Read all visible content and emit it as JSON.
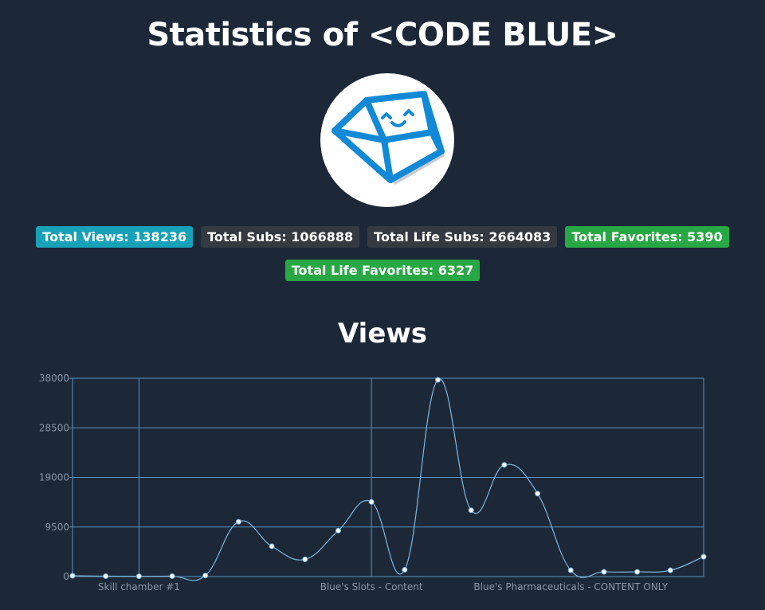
{
  "header": {
    "title": "Statistics of <CODE BLUE>"
  },
  "avatar": {
    "icon": "keycap-smiley-icon",
    "colors": {
      "outline": "#1289d6",
      "fill": "#ffffff",
      "shadow": "#c9cdd3"
    }
  },
  "stats": {
    "badges": [
      {
        "label": "Total Views: 138236",
        "color": "#17a2b8"
      },
      {
        "label": "Total Subs: 1066888",
        "color": "#343a40"
      },
      {
        "label": "Total Life Subs: 2664083",
        "color": "#343a40"
      },
      {
        "label": "Total Favorites: 5390",
        "color": "#28a745"
      },
      {
        "label": "Total Life Favorites: 6327",
        "color": "#28a745"
      }
    ]
  },
  "chart": {
    "title": "Views"
  },
  "chart_data": {
    "type": "line",
    "title": "Views",
    "xlabel": "",
    "ylabel": "",
    "ylim": [
      0,
      38000
    ],
    "yticks": [
      0,
      9500,
      19000,
      28500,
      38000
    ],
    "x_tick_labels": [
      "Skill chamber #1",
      "Blue's Slots - Content",
      "Blue's Pharmaceuticals - CONTENT ONLY"
    ],
    "x_tick_label_indices": [
      2,
      9,
      15
    ],
    "vertical_grid_indices": [
      2,
      9
    ],
    "line_color": "#7fb8e0",
    "grid_color": "#5b93c2",
    "series": [
      {
        "values": [
          150,
          80,
          60,
          80,
          200,
          10500,
          5800,
          3300,
          8800,
          14300,
          1300,
          37700,
          12700,
          21400,
          15900,
          1200,
          900,
          900,
          1200,
          3800
        ]
      }
    ]
  }
}
